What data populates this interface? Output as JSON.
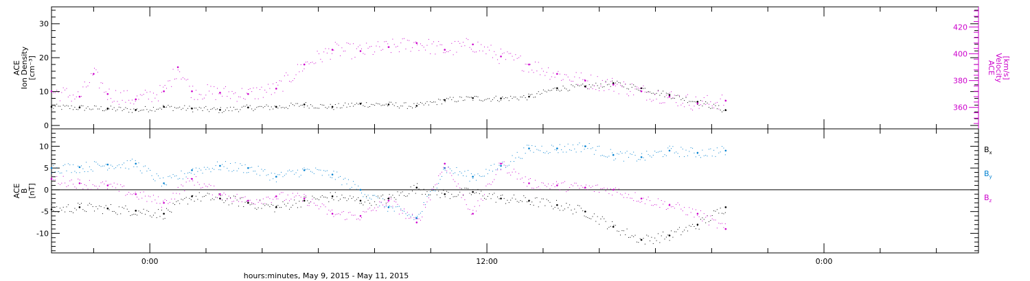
{
  "chart_data": {
    "type": "scatter",
    "x_axis": {
      "title": "hours:minutes, May  9, 2015 - May 11, 2015",
      "start": "2015-05-09T20:30",
      "end": "2015-05-11T05:30",
      "tick_labels": [
        {
          "t": "2015-05-10T00:00",
          "label": "0:00"
        },
        {
          "t": "2015-05-10T12:00",
          "label": "12:00"
        },
        {
          "t": "2015-05-11T00:00",
          "label": "0:00"
        }
      ],
      "minor_tick_hours": 2
    },
    "data_end": "2015-05-10T20:30",
    "panels": [
      {
        "name": "top",
        "left_axis": {
          "label": [
            "ACE",
            "Ion Density",
            "[cm⁻³]"
          ],
          "range": [
            -1,
            35
          ],
          "ticks": [
            0,
            10,
            20,
            30
          ],
          "color": "#000000"
        },
        "right_axis": {
          "label": [
            "ACE",
            "Velocity",
            "[km/s]"
          ],
          "range": [
            344,
            435
          ],
          "ticks": [
            360,
            380,
            400,
            420
          ],
          "color": "#cc00cc"
        },
        "series": [
          {
            "axis": "left",
            "color": "#000000",
            "points": [
              [
                "2015-05-09T20:30",
                5.5
              ],
              [
                "2015-05-09T21:30",
                5.3
              ],
              [
                "2015-05-09T22:30",
                5.0
              ],
              [
                "2015-05-09T23:30",
                4.6
              ],
              [
                "2015-05-10T00:30",
                5.5
              ],
              [
                "2015-05-10T01:30",
                5.0
              ],
              [
                "2015-05-10T02:30",
                4.6
              ],
              [
                "2015-05-10T03:30",
                5.3
              ],
              [
                "2015-05-10T04:30",
                5.5
              ],
              [
                "2015-05-10T05:30",
                6.2
              ],
              [
                "2015-05-10T06:30",
                5.5
              ],
              [
                "2015-05-10T07:30",
                6.4
              ],
              [
                "2015-05-10T08:30",
                6.2
              ],
              [
                "2015-05-10T09:30",
                5.8
              ],
              [
                "2015-05-10T10:30",
                7.5
              ],
              [
                "2015-05-10T11:30",
                8.1
              ],
              [
                "2015-05-10T12:30",
                8.0
              ],
              [
                "2015-05-10T13:30",
                8.5
              ],
              [
                "2015-05-10T14:30",
                11.0
              ],
              [
                "2015-05-10T15:30",
                11.5
              ],
              [
                "2015-05-10T16:30",
                12.5
              ],
              [
                "2015-05-10T17:30",
                11.0
              ],
              [
                "2015-05-10T18:30",
                9.0
              ],
              [
                "2015-05-10T19:30",
                7.0
              ],
              [
                "2015-05-10T20:30",
                4.5
              ]
            ]
          },
          {
            "axis": "right",
            "color": "#cc00cc",
            "points": [
              [
                "2015-05-09T20:30",
                372
              ],
              [
                "2015-05-09T21:30",
                368
              ],
              [
                "2015-05-09T22:00",
                385
              ],
              [
                "2015-05-09T22:30",
                370
              ],
              [
                "2015-05-09T23:30",
                366
              ],
              [
                "2015-05-10T00:30",
                372
              ],
              [
                "2015-05-10T01:00",
                390
              ],
              [
                "2015-05-10T01:30",
                372
              ],
              [
                "2015-05-10T02:30",
                371
              ],
              [
                "2015-05-10T03:30",
                370
              ],
              [
                "2015-05-10T04:30",
                374
              ],
              [
                "2015-05-10T05:30",
                392
              ],
              [
                "2015-05-10T06:30",
                403
              ],
              [
                "2015-05-10T07:30",
                402
              ],
              [
                "2015-05-10T08:30",
                405
              ],
              [
                "2015-05-10T09:30",
                408
              ],
              [
                "2015-05-10T10:30",
                403
              ],
              [
                "2015-05-10T11:30",
                407
              ],
              [
                "2015-05-10T12:30",
                398
              ],
              [
                "2015-05-10T13:30",
                392
              ],
              [
                "2015-05-10T14:30",
                385
              ],
              [
                "2015-05-10T15:30",
                380
              ],
              [
                "2015-05-10T16:30",
                377
              ],
              [
                "2015-05-10T17:30",
                372
              ],
              [
                "2015-05-10T18:30",
                368
              ],
              [
                "2015-05-10T19:30",
                363
              ],
              [
                "2015-05-10T20:30",
                365
              ]
            ]
          }
        ]
      },
      {
        "name": "bottom",
        "left_axis": {
          "label": [
            "ACE",
            "B",
            "[nT]"
          ],
          "range": [
            -14.5,
            14
          ],
          "ticks": [
            -10,
            -5,
            0,
            5,
            10
          ],
          "color": "#000000"
        },
        "zero_line": true,
        "series": [
          {
            "name": "Bx",
            "color": "#000000",
            "points": [
              [
                "2015-05-09T20:30",
                -4.5
              ],
              [
                "2015-05-09T21:30",
                -4.0
              ],
              [
                "2015-05-09T22:30",
                -4.3
              ],
              [
                "2015-05-09T23:30",
                -4.8
              ],
              [
                "2015-05-10T00:30",
                -5.5
              ],
              [
                "2015-05-10T01:30",
                -1.5
              ],
              [
                "2015-05-10T02:30",
                -2.0
              ],
              [
                "2015-05-10T03:30",
                -3.0
              ],
              [
                "2015-05-10T04:30",
                -4.0
              ],
              [
                "2015-05-10T05:30",
                -2.5
              ],
              [
                "2015-05-10T06:30",
                -1.5
              ],
              [
                "2015-05-10T07:30",
                -2.5
              ],
              [
                "2015-05-10T08:30",
                -2.0
              ],
              [
                "2015-05-10T09:30",
                0.5
              ],
              [
                "2015-05-10T10:30",
                -1.0
              ],
              [
                "2015-05-10T11:30",
                -0.5
              ],
              [
                "2015-05-10T12:30",
                -2.0
              ],
              [
                "2015-05-10T13:30",
                -2.5
              ],
              [
                "2015-05-10T14:30",
                -3.5
              ],
              [
                "2015-05-10T15:30",
                -5.0
              ],
              [
                "2015-05-10T16:30",
                -8.5
              ],
              [
                "2015-05-10T17:30",
                -11.5
              ],
              [
                "2015-05-10T18:30",
                -10.5
              ],
              [
                "2015-05-10T19:30",
                -8.0
              ],
              [
                "2015-05-10T20:30",
                -4.0
              ]
            ]
          },
          {
            "name": "By",
            "color": "#0080d0",
            "points": [
              [
                "2015-05-09T20:30",
                5.0
              ],
              [
                "2015-05-09T21:30",
                5.2
              ],
              [
                "2015-05-09T22:30",
                5.8
              ],
              [
                "2015-05-09T23:30",
                6.0
              ],
              [
                "2015-05-10T00:30",
                1.5
              ],
              [
                "2015-05-10T01:30",
                4.5
              ],
              [
                "2015-05-10T02:30",
                5.5
              ],
              [
                "2015-05-10T03:30",
                5.0
              ],
              [
                "2015-05-10T04:30",
                3.0
              ],
              [
                "2015-05-10T05:30",
                4.5
              ],
              [
                "2015-05-10T06:30",
                3.5
              ],
              [
                "2015-05-10T07:30",
                0.0
              ],
              [
                "2015-05-10T08:30",
                -4.0
              ],
              [
                "2015-05-10T09:30",
                -6.5
              ],
              [
                "2015-05-10T10:30",
                5.0
              ],
              [
                "2015-05-10T11:30",
                3.0
              ],
              [
                "2015-05-10T12:30",
                5.5
              ],
              [
                "2015-05-10T13:30",
                9.5
              ],
              [
                "2015-05-10T14:30",
                9.5
              ],
              [
                "2015-05-10T15:30",
                10.0
              ],
              [
                "2015-05-10T16:30",
                8.0
              ],
              [
                "2015-05-10T17:30",
                7.5
              ],
              [
                "2015-05-10T18:30",
                9.0
              ],
              [
                "2015-05-10T19:30",
                8.5
              ],
              [
                "2015-05-10T20:30",
                9.0
              ]
            ]
          },
          {
            "name": "Bz",
            "color": "#cc00cc",
            "points": [
              [
                "2015-05-09T20:30",
                2.5
              ],
              [
                "2015-05-09T21:30",
                1.5
              ],
              [
                "2015-05-09T22:30",
                1.0
              ],
              [
                "2015-05-09T23:30",
                -1.0
              ],
              [
                "2015-05-10T00:30",
                -3.0
              ],
              [
                "2015-05-10T01:30",
                2.5
              ],
              [
                "2015-05-10T02:30",
                -1.0
              ],
              [
                "2015-05-10T03:30",
                -2.5
              ],
              [
                "2015-05-10T04:30",
                -1.5
              ],
              [
                "2015-05-10T05:30",
                -2.0
              ],
              [
                "2015-05-10T06:30",
                -5.5
              ],
              [
                "2015-05-10T07:30",
                -6.0
              ],
              [
                "2015-05-10T08:30",
                -2.5
              ],
              [
                "2015-05-10T09:30",
                -7.5
              ],
              [
                "2015-05-10T10:30",
                6.0
              ],
              [
                "2015-05-10T11:30",
                -5.5
              ],
              [
                "2015-05-10T12:30",
                6.0
              ],
              [
                "2015-05-10T13:30",
                1.5
              ],
              [
                "2015-05-10T14:30",
                1.0
              ],
              [
                "2015-05-10T15:30",
                0.5
              ],
              [
                "2015-05-10T16:30",
                0.0
              ],
              [
                "2015-05-10T17:30",
                -2.0
              ],
              [
                "2015-05-10T18:30",
                -3.5
              ],
              [
                "2015-05-10T19:30",
                -5.5
              ],
              [
                "2015-05-10T20:30",
                -9.0
              ]
            ]
          }
        ],
        "legend": [
          {
            "label": "B",
            "sub": "x",
            "color": "#000000"
          },
          {
            "label": "B",
            "sub": "y",
            "color": "#0080d0"
          },
          {
            "label": "B",
            "sub": "z",
            "color": "#cc00cc"
          }
        ]
      }
    ]
  }
}
